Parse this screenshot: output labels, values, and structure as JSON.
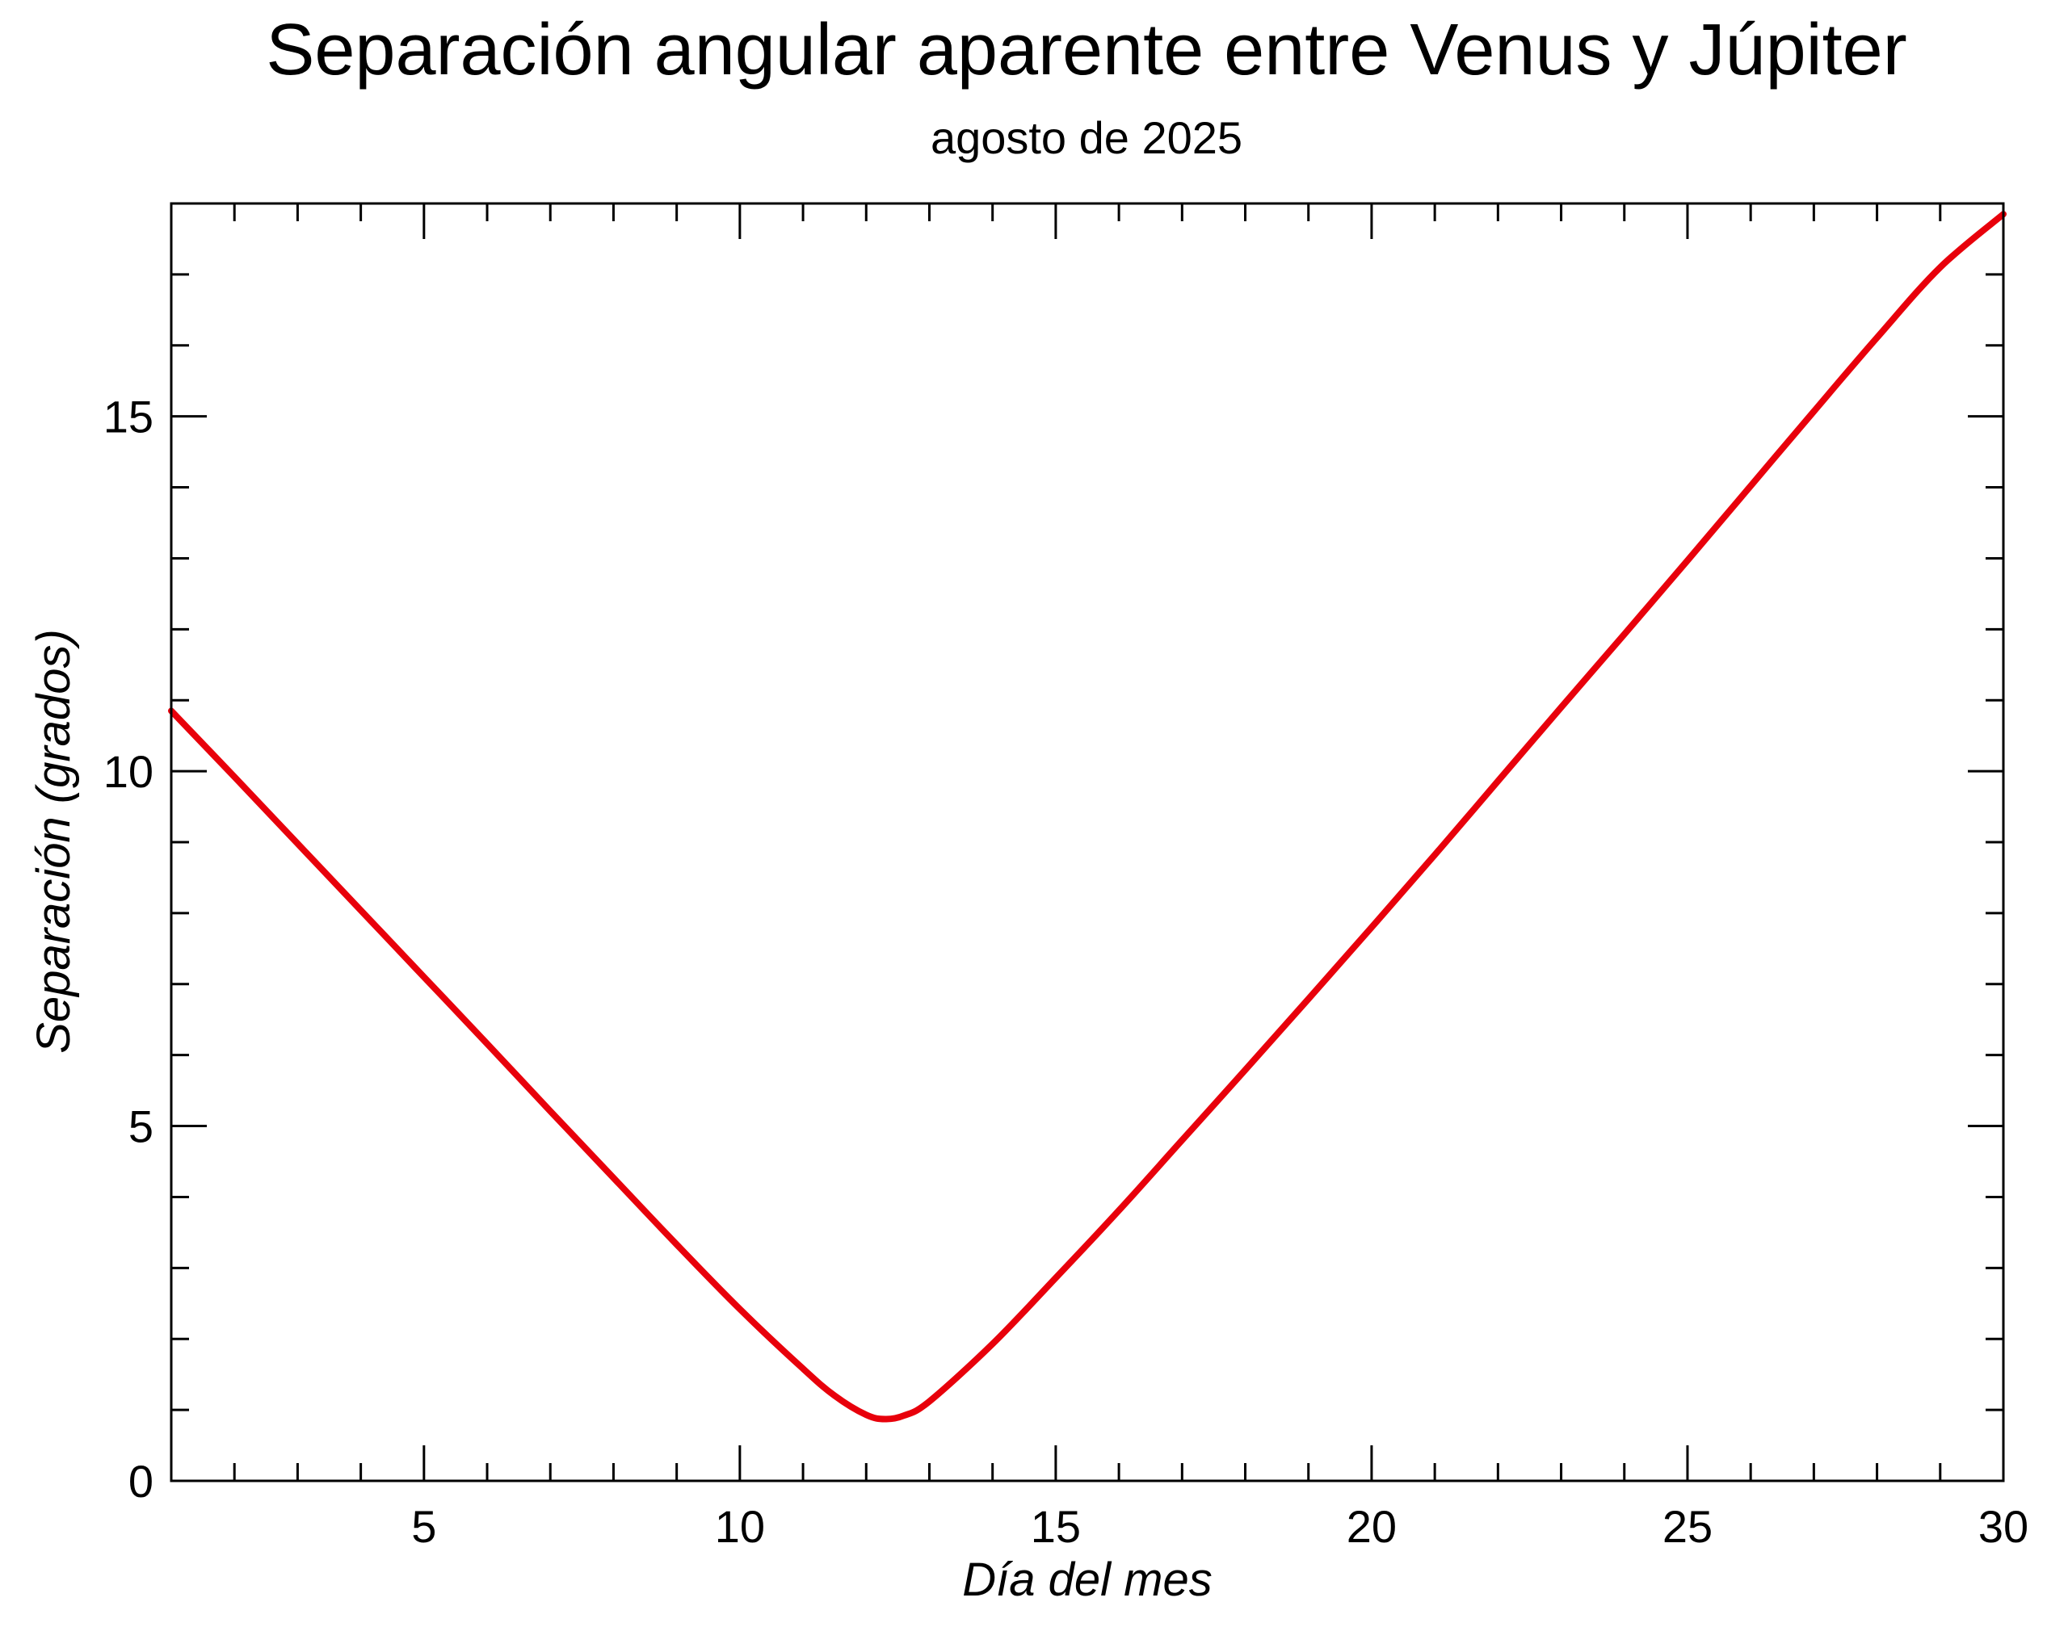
{
  "chart_data": {
    "type": "line",
    "title": "Separación angular aparente entre Venus y Júpiter",
    "subtitle": "agosto de 2025",
    "xlabel": "Día del mes",
    "ylabel": "Separación (grados)",
    "xlim": [
      1,
      30
    ],
    "ylim": [
      0,
      18
    ],
    "x_major_ticks": [
      5,
      10,
      15,
      20,
      25,
      30
    ],
    "x_minor_step": 1,
    "y_major_ticks": [
      0,
      5,
      10,
      15
    ],
    "y_minor_step": 1,
    "x_tick_labels": [
      "5",
      "10",
      "15",
      "20",
      "25",
      "30"
    ],
    "y_tick_labels": [
      "0",
      "5",
      "10",
      "15"
    ],
    "grid": false,
    "legend": "none",
    "series": [
      {
        "color": "#e8000b",
        "x": [
          1,
          2,
          3,
          4,
          5,
          6,
          7,
          8,
          9,
          10,
          11,
          11.5,
          12,
          12.3,
          12.6,
          13,
          14,
          15,
          16,
          17,
          18,
          19,
          20,
          21,
          22,
          23,
          24,
          25,
          26,
          27,
          28,
          29,
          30
        ],
        "y": [
          10.85,
          9.92,
          8.98,
          8.04,
          7.1,
          6.16,
          5.21,
          4.27,
          3.33,
          2.42,
          1.58,
          1.2,
          0.93,
          0.87,
          0.92,
          1.12,
          1.93,
          2.86,
          3.81,
          4.8,
          5.79,
          6.79,
          7.8,
          8.82,
          9.86,
          10.9,
          11.93,
          12.97,
          14.02,
          15.07,
          16.11,
          17.1,
          17.85
        ]
      }
    ]
  }
}
